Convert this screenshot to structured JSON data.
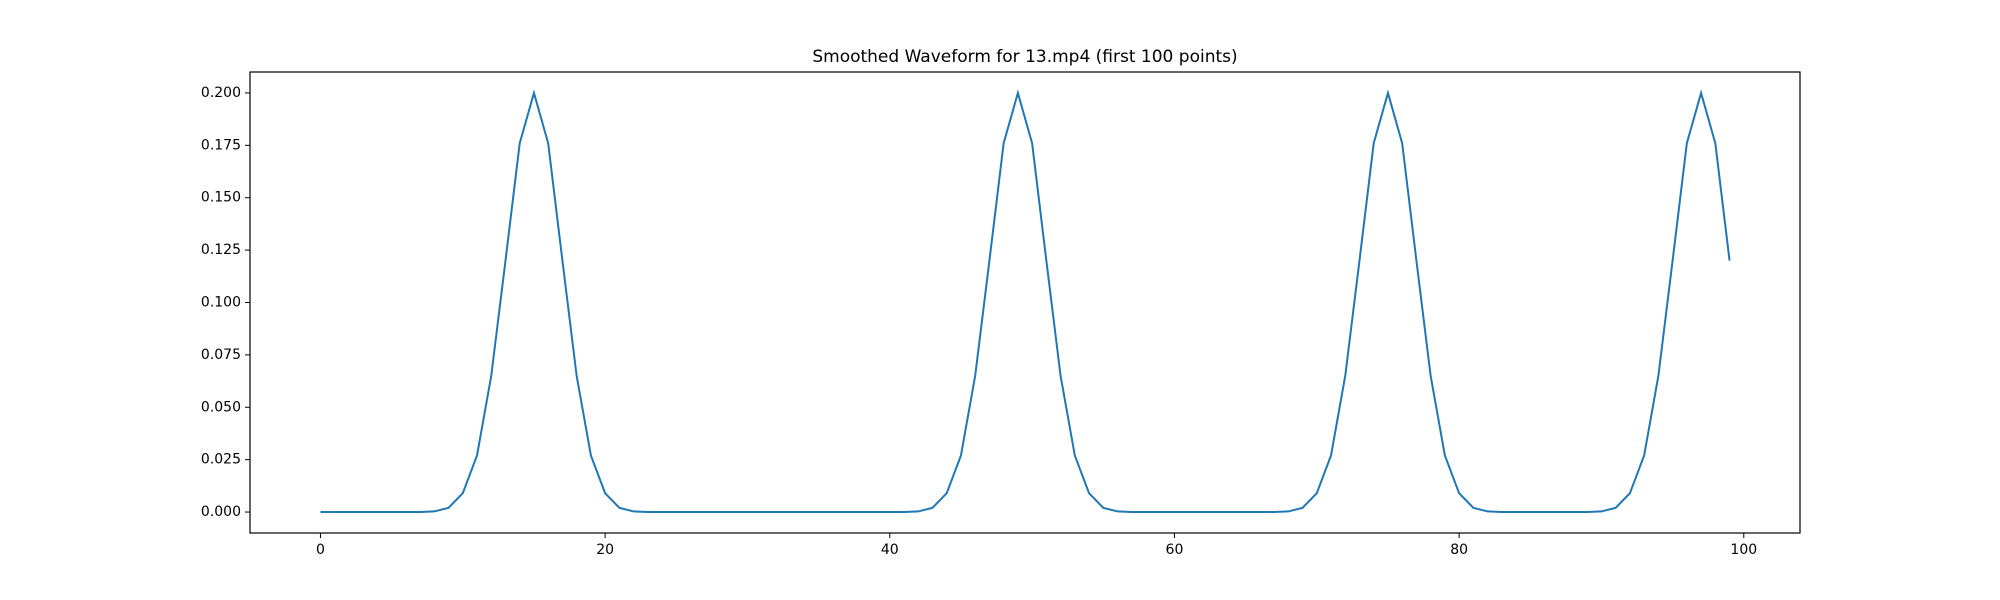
{
  "chart_data": {
    "type": "line",
    "title": "Smoothed Waveform for 13.mp4 (first 100 points)",
    "color": "#1f77b4",
    "x": [
      0,
      1,
      2,
      3,
      4,
      5,
      6,
      7,
      8,
      9,
      10,
      11,
      12,
      13,
      14,
      15,
      16,
      17,
      18,
      19,
      20,
      21,
      22,
      23,
      24,
      25,
      26,
      27,
      28,
      29,
      30,
      31,
      32,
      33,
      34,
      35,
      36,
      37,
      38,
      39,
      40,
      41,
      42,
      43,
      44,
      45,
      46,
      47,
      48,
      49,
      50,
      51,
      52,
      53,
      54,
      55,
      56,
      57,
      58,
      59,
      60,
      61,
      62,
      63,
      64,
      65,
      66,
      67,
      68,
      69,
      70,
      71,
      72,
      73,
      74,
      75,
      76,
      77,
      78,
      79,
      80,
      81,
      82,
      83,
      84,
      85,
      86,
      87,
      88,
      89,
      90,
      91,
      92,
      93,
      94,
      95,
      96,
      97,
      98,
      99
    ],
    "values": [
      0,
      0,
      0,
      0,
      0,
      0,
      0,
      0,
      0.0003,
      0.002,
      0.009,
      0.027,
      0.065,
      0.12,
      0.176,
      0.2,
      0.176,
      0.12,
      0.065,
      0.027,
      0.009,
      0.002,
      0.0003,
      0,
      0,
      0,
      0,
      0,
      0,
      0,
      0,
      0,
      0,
      0,
      0,
      0,
      0,
      0,
      0,
      0,
      0,
      0,
      0.0003,
      0.002,
      0.009,
      0.027,
      0.065,
      0.12,
      0.176,
      0.2,
      0.176,
      0.12,
      0.065,
      0.027,
      0.009,
      0.002,
      0.0003,
      0,
      0,
      0,
      0,
      0,
      0,
      0,
      0,
      0,
      0,
      0,
      0.0003,
      0.002,
      0.009,
      0.027,
      0.065,
      0.12,
      0.176,
      0.2,
      0.176,
      0.12,
      0.065,
      0.027,
      0.009,
      0.002,
      0.0003,
      0,
      0,
      0,
      0,
      0,
      0,
      0,
      0.0003,
      0.002,
      0.009,
      0.027,
      0.065,
      0.12,
      0.176,
      0.2,
      0.176,
      0.12
    ],
    "xlim": [
      -4.95,
      103.95
    ],
    "xticks": [
      0,
      20,
      40,
      60,
      80,
      100
    ],
    "ylim": [
      -0.01,
      0.21
    ],
    "yticks": [
      {
        "value": 0,
        "label": "0.000"
      },
      {
        "value": 0.025,
        "label": "0.025"
      },
      {
        "value": 0.05,
        "label": "0.050"
      },
      {
        "value": 0.075,
        "label": "0.075"
      },
      {
        "value": 0.1,
        "label": "0.100"
      },
      {
        "value": 0.125,
        "label": "0.125"
      },
      {
        "value": 0.15,
        "label": "0.150"
      },
      {
        "value": 0.175,
        "label": "0.175"
      },
      {
        "value": 0.2,
        "label": "0.200"
      }
    ],
    "grid": false
  }
}
